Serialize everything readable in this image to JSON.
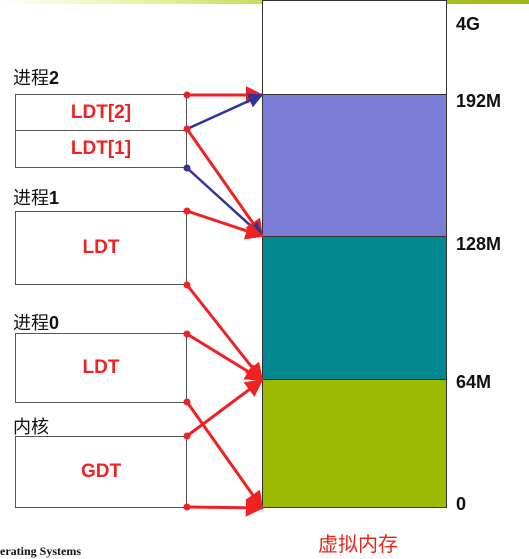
{
  "processes": [
    {
      "label_prefix": "进程",
      "label_num": "2",
      "tables": [
        "LDT[2]",
        "LDT[1]"
      ]
    },
    {
      "label_prefix": "进程",
      "label_num": "1",
      "tables": [
        "LDT"
      ]
    },
    {
      "label_prefix": "进程",
      "label_num": "0",
      "tables": [
        "LDT"
      ]
    },
    {
      "label_prefix": "内核",
      "label_num": "",
      "tables": [
        "GDT"
      ]
    }
  ],
  "memory": {
    "caption": "虚拟内存",
    "addresses": [
      "4G",
      "192M",
      "128M",
      "64M",
      "0"
    ],
    "colors": {
      "top": "#ffffff",
      "range_128M_192M": "#7b7dd6",
      "range_64M_128M": "#00878f",
      "range_0_64M": "#9bba00"
    }
  },
  "arrow_colors": {
    "red": "#ee2222",
    "blue": "#333399"
  },
  "footer": "erating Systems"
}
